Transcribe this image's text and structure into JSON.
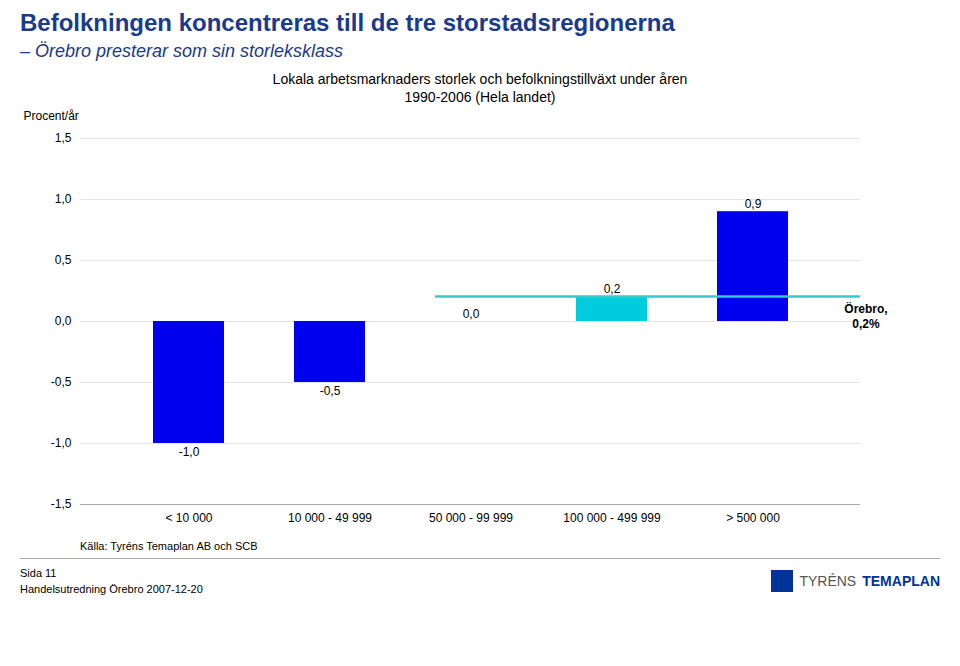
{
  "chart_data": {
    "type": "bar",
    "title": "Befolkningen koncentreras till de tre storstadsregionerna",
    "subtitle": "– Örebro presterar som sin storleksklass",
    "chart_title": [
      "Lokala arbetsmarknaders storlek och befolkningstillväxt under åren",
      "1990-2006 (Hela landet)"
    ],
    "ylabel": "Procent/år",
    "categories": [
      "< 10 000",
      "10 000 - 49 999",
      "50 000 - 99 999",
      "100 000 - 499 999",
      "> 500 000"
    ],
    "values": [
      -1.0,
      -0.5,
      0.0,
      0.2,
      0.9
    ],
    "value_labels": [
      "-1,0",
      "-0,5",
      "0,0",
      "0,2",
      "0,9"
    ],
    "data_labels": true,
    "colors": [
      "#0000ee",
      "#0000ee",
      "#0000ee",
      "#00ccdd",
      "#0000ee"
    ],
    "ylim": [
      -1.5,
      1.5
    ],
    "yticks": [
      {
        "value": -1.5,
        "label": "-1,5"
      },
      {
        "value": -1.0,
        "label": "-1,0"
      },
      {
        "value": -0.5,
        "label": "-0,5"
      },
      {
        "value": 0.0,
        "label": "0,0"
      },
      {
        "value": 0.5,
        "label": "0,5"
      },
      {
        "value": 1.0,
        "label": "1,0"
      },
      {
        "value": 1.5,
        "label": "1,5"
      }
    ],
    "grid": true,
    "reference_line": {
      "value": 0.2,
      "color": "#33cccc",
      "from_category": "50 000 - 99 999",
      "label": [
        "Örebro,",
        "0,2%"
      ]
    },
    "source": "Källa: Tyréns Temaplan AB och SCB",
    "footer": [
      "Sida 11",
      "Handelsutredning Örebro 2007-12-20"
    ],
    "logo": [
      "TYRÉNS",
      "TEMAPLAN"
    ]
  }
}
